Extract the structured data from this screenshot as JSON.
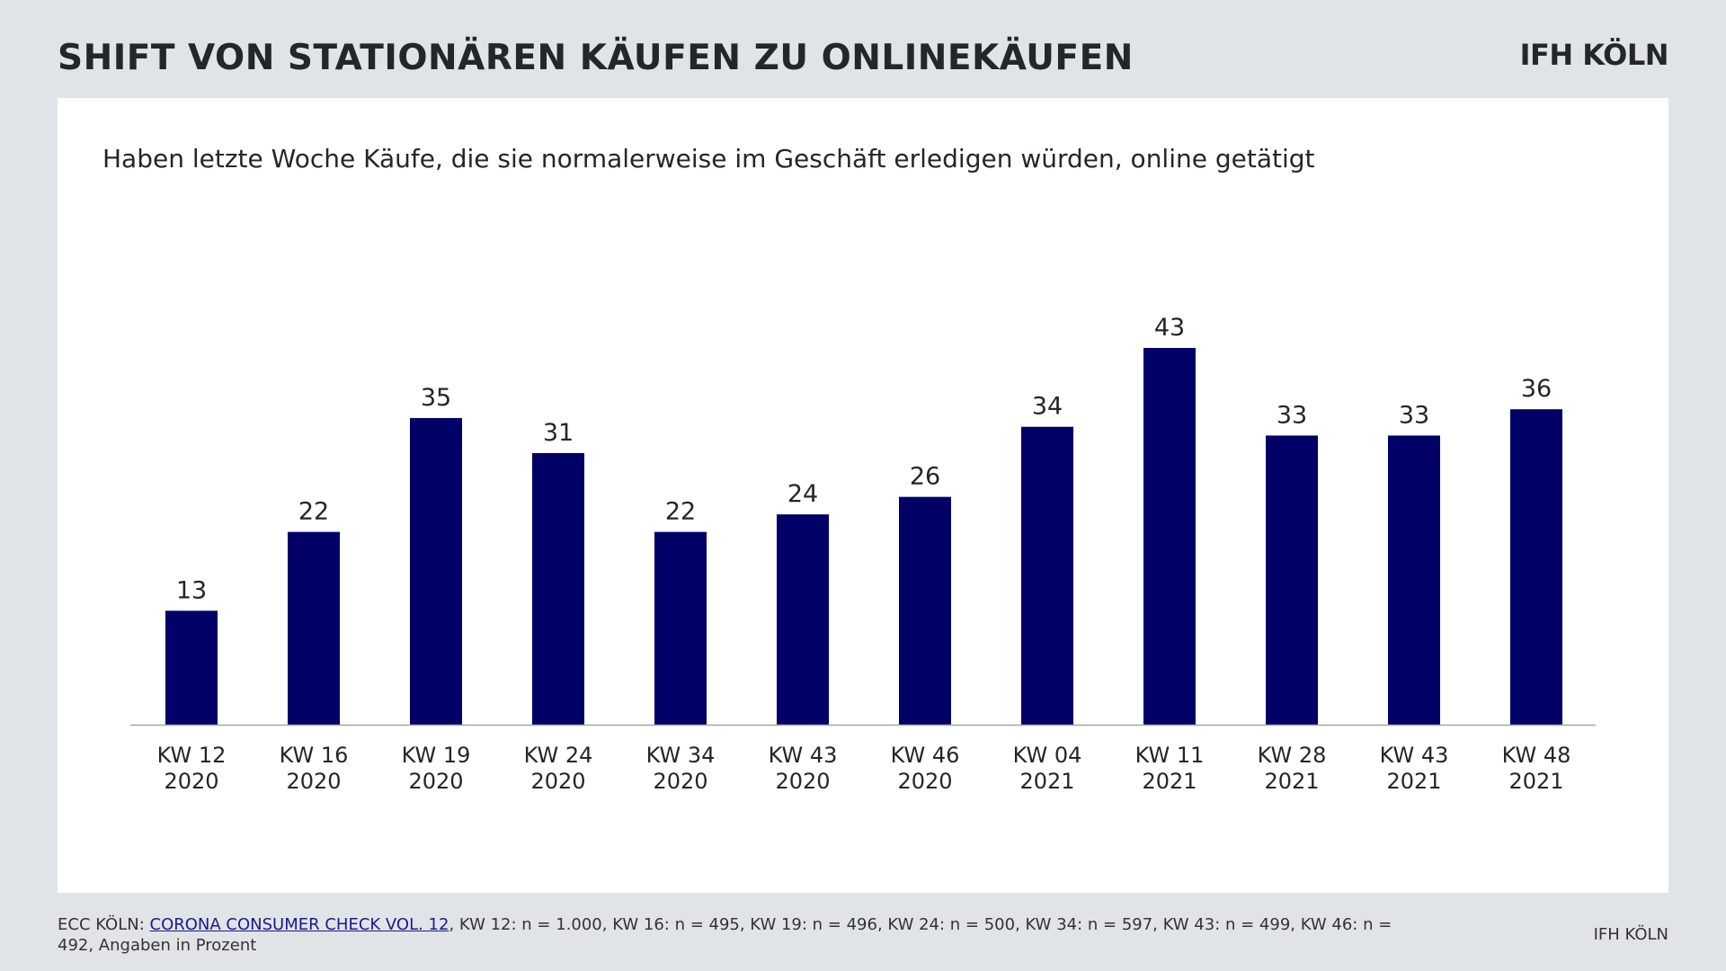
{
  "header": {
    "title": "SHIFT VON STATIONÄREN KÄUFEN ZU ONLINEKÄUFEN",
    "logo": "IFH KÖLN"
  },
  "chart_data": {
    "type": "bar",
    "title": "Haben letzte Woche Käufe, die sie normalerweise im Geschäft erledigen würden, online getätigt",
    "categories": [
      [
        "KW 12",
        "2020"
      ],
      [
        "KW 16",
        "2020"
      ],
      [
        "KW 19",
        "2020"
      ],
      [
        "KW 24",
        "2020"
      ],
      [
        "KW 34",
        "2020"
      ],
      [
        "KW 43",
        "2020"
      ],
      [
        "KW 46",
        "2020"
      ],
      [
        "KW 04",
        "2021"
      ],
      [
        "KW 11",
        "2021"
      ],
      [
        "KW 28",
        "2021"
      ],
      [
        "KW 43",
        "2021"
      ],
      [
        "KW 48",
        "2021"
      ]
    ],
    "values": [
      13,
      22,
      35,
      31,
      22,
      24,
      26,
      34,
      43,
      33,
      33,
      36
    ],
    "ylim": [
      0,
      43
    ],
    "grid": false,
    "bar_color": "#000066",
    "data_labels": true
  },
  "footer": {
    "source_prefix": "ECC KÖLN: ",
    "source_link": "CORONA CONSUMER CHECK VOL. 12",
    "source_rest": ", KW 12: n = 1.000, KW 16: n = 495, KW 19: n = 496, KW 24: n = 500, KW 34: n = 597, KW 43: n = 499, KW 46: n = 492, Angaben in Prozent",
    "right": "IFH KÖLN"
  }
}
